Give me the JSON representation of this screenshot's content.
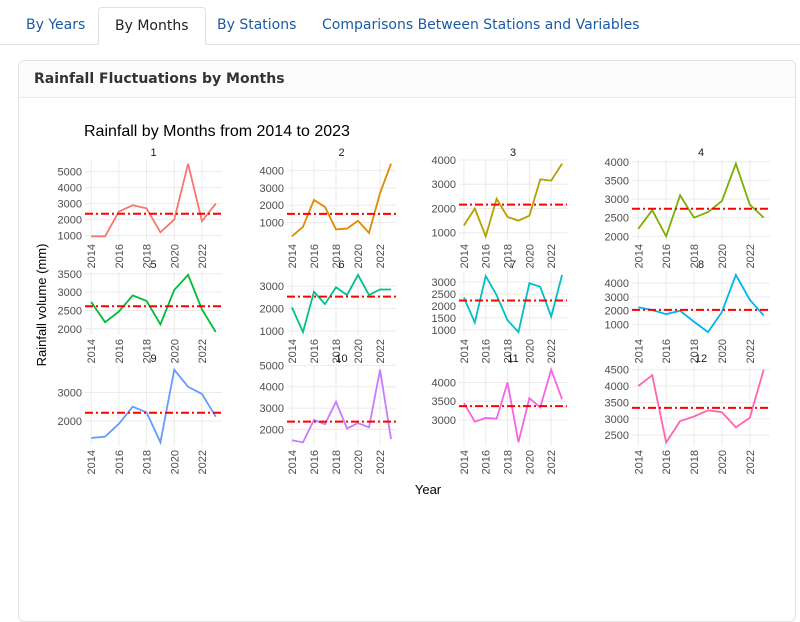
{
  "tabs": [
    "By Years",
    "By Months",
    "By Stations",
    "Comparisons Between Stations and Variables"
  ],
  "card": {
    "title": "Rainfall Fluctuations by Months"
  },
  "chart_data": {
    "type": "line",
    "title": "Rainfall by Months from 2014 to 2023",
    "xlabel": "Year",
    "ylabel": "Rainfall volume (mm)",
    "x": [
      2014,
      2015,
      2016,
      2017,
      2018,
      2019,
      2020,
      2021,
      2022,
      2023
    ],
    "xlim": [
      2013.55,
      2023.45
    ],
    "xticks": [
      2014,
      2016,
      2018,
      2020,
      2022
    ],
    "grid": true,
    "mean_color": "#ff0000",
    "facets": [
      {
        "name": "1",
        "color": "#F8766D",
        "values": [
          950,
          950,
          2500,
          2900,
          2700,
          1200,
          2000,
          5500,
          1900,
          3000
        ],
        "mean": 2360,
        "ylim": [
          720,
          5730
        ],
        "yticks": [
          1000,
          2000,
          3000,
          4000,
          5000
        ]
      },
      {
        "name": "2",
        "color": "#DE8C00",
        "values": [
          200,
          750,
          2300,
          1900,
          600,
          650,
          1100,
          400,
          2700,
          4400
        ],
        "mean": 1500,
        "ylim": [
          -10,
          4610
        ],
        "yticks": [
          1000,
          2000,
          3000,
          4000
        ]
      },
      {
        "name": "3",
        "color": "#B79F00",
        "values": [
          1300,
          2000,
          850,
          2400,
          1650,
          1500,
          1700,
          3200,
          3150,
          3850
        ],
        "mean": 2160,
        "ylim": [
          700,
          4000
        ],
        "yticks": [
          1000,
          2000,
          3000,
          4000
        ]
      },
      {
        "name": "4",
        "color": "#7CAE00",
        "values": [
          2200,
          2700,
          2000,
          3100,
          2500,
          2650,
          2950,
          3950,
          2850,
          2500
        ],
        "mean": 2740,
        "ylim": [
          1900,
          4050
        ],
        "yticks": [
          2000,
          2500,
          3000,
          3500,
          4000
        ]
      },
      {
        "name": "5",
        "color": "#00BA38",
        "values": [
          2730,
          2180,
          2470,
          2910,
          2760,
          2120,
          3060,
          3470,
          2530,
          1910
        ],
        "mean": 2614,
        "ylim": [
          1830,
          3550
        ],
        "yticks": [
          2000,
          2500,
          3000,
          3500
        ]
      },
      {
        "name": "6",
        "color": "#00C08B",
        "values": [
          2050,
          950,
          2750,
          2200,
          2950,
          2600,
          3500,
          2600,
          2850,
          2850
        ],
        "mean": 2530,
        "ylim": [
          820,
          3630
        ],
        "yticks": [
          1000,
          2000,
          3000
        ]
      },
      {
        "name": "7",
        "color": "#00BFC4",
        "values": [
          2350,
          1300,
          3250,
          2450,
          1400,
          900,
          2950,
          2800,
          1550,
          3300
        ],
        "mean": 2225,
        "ylim": [
          780,
          3420
        ],
        "yticks": [
          1000,
          1500,
          2000,
          2500,
          3000
        ]
      },
      {
        "name": "8",
        "color": "#00B4F0",
        "values": [
          2250,
          2050,
          1750,
          2000,
          1200,
          450,
          1900,
          4600,
          2800,
          1650
        ],
        "mean": 2065,
        "ylim": [
          240,
          4810
        ],
        "yticks": [
          1000,
          2000,
          3000,
          4000
        ]
      },
      {
        "name": "9",
        "color": "#619CFF",
        "values": [
          1400,
          1450,
          1900,
          2500,
          2300,
          1250,
          3800,
          3200,
          2950,
          2150
        ],
        "mean": 2290,
        "ylim": [
          1120,
          3930
        ],
        "yticks": [
          2000,
          3000
        ]
      },
      {
        "name": "10",
        "color": "#C77CFF",
        "values": [
          1500,
          1400,
          2450,
          2250,
          3300,
          2050,
          2300,
          2100,
          4800,
          1550
        ],
        "mean": 2370,
        "ylim": [
          1230,
          4970
        ],
        "yticks": [
          2000,
          3000,
          4000,
          5000
        ]
      },
      {
        "name": "11",
        "color": "#F564E3",
        "values": [
          3450,
          2950,
          3050,
          3030,
          4000,
          2400,
          3580,
          3330,
          4340,
          3550
        ],
        "mean": 3368,
        "ylim": [
          2300,
          4440
        ],
        "yticks": [
          3000,
          3500,
          4000
        ]
      },
      {
        "name": "12",
        "color": "#FF64B0",
        "values": [
          4000,
          4330,
          2280,
          2930,
          3070,
          3260,
          3200,
          2740,
          3030,
          4500
        ],
        "mean": 3334,
        "ylim": [
          2170,
          4610
        ],
        "yticks": [
          2500,
          3000,
          3500,
          4000,
          4500
        ]
      }
    ]
  }
}
